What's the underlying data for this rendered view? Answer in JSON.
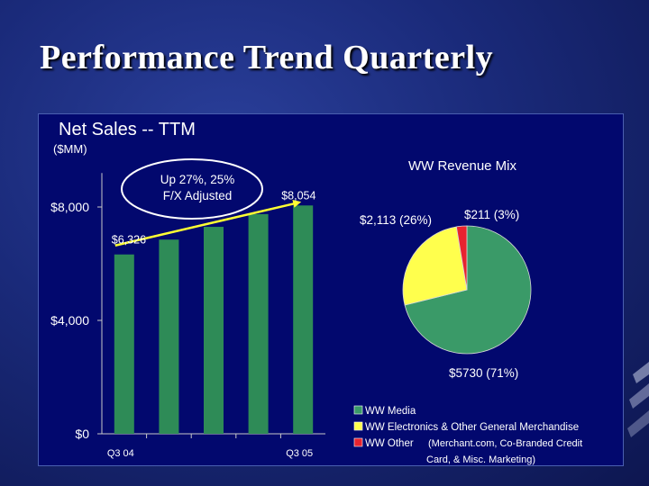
{
  "slide": {
    "title": "Performance Trend Quarterly"
  },
  "chart_data": [
    {
      "type": "bar",
      "title": "Net Sales -- TTM",
      "ylabel": "($MM)",
      "categories": [
        "Q3 04",
        "",
        "",
        "",
        "Q3 05"
      ],
      "values": [
        6326,
        6850,
        7300,
        7750,
        8054
      ],
      "ylim": [
        0,
        9200
      ],
      "yticks": [
        {
          "value": 0,
          "label": "$0"
        },
        {
          "value": 4000,
          "label": "$4,000"
        },
        {
          "value": 8000,
          "label": "$8,000"
        }
      ],
      "data_labels": {
        "first": "$6,326",
        "last": "$8,054"
      },
      "callout": {
        "line1": "Up 27%, 25%",
        "line2": "F/X Adjusted"
      },
      "bar_color": "#2e8b57"
    },
    {
      "type": "pie",
      "title": "WW Revenue Mix",
      "slices": [
        {
          "name": "WW Media",
          "value": 5730,
          "label": "$5730 (71%)",
          "color": "#3a9a68"
        },
        {
          "name": "WW Electronics & Other General Merchandise",
          "value": 2113,
          "label": "$2,113 (26%)",
          "color": "#ffff4d"
        },
        {
          "name": "WW Other",
          "value": 211,
          "label": "$211 (3%)",
          "color": "#e8232f"
        }
      ],
      "legend": [
        {
          "label": "WW Media",
          "color": "#3a9a68"
        },
        {
          "label": "WW Electronics & Other General Merchandise",
          "color": "#ffff4d"
        },
        {
          "label": "WW Other",
          "color": "#e8232f",
          "note_line1": "(Merchant.com, Co-Branded Credit",
          "note_line2": "Card,  & Misc. Marketing)"
        }
      ]
    }
  ]
}
